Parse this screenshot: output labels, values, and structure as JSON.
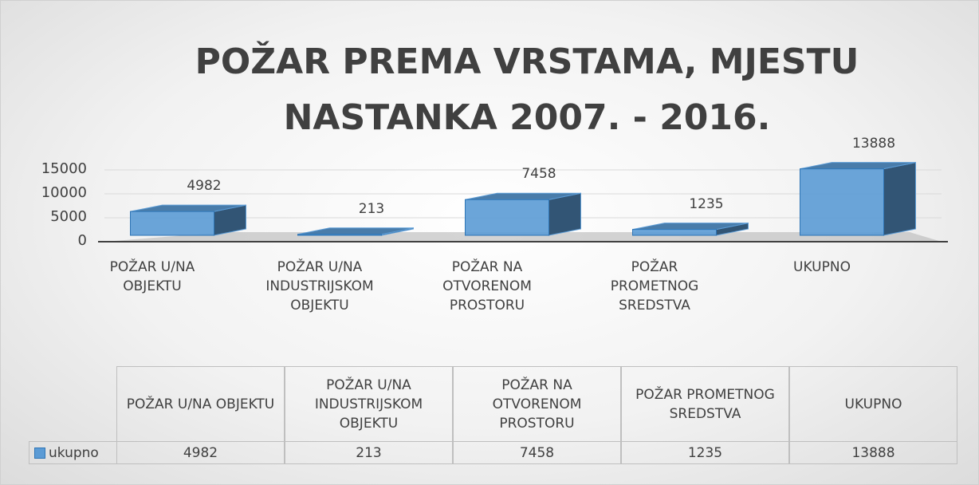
{
  "chart_data": {
    "type": "bar3d",
    "title": "POŽAR PREMA VRSTAMA, MJESTU NASTANKA 2007. - 2016.",
    "categories": [
      "POŽAR U/NA OBJEKTU",
      "POŽAR U/NA INDUSTRIJSKOM OBJEKTU",
      "POŽAR NA OTVORENOM PROSTORU",
      "POŽAR PROMETNOG SREDSTVA",
      "UKUPNO"
    ],
    "series": [
      {
        "name": "ukupno",
        "color": "#5b9bd5",
        "values": [
          4982,
          213,
          7458,
          1235,
          13888
        ]
      }
    ],
    "ylim": [
      0,
      15000
    ],
    "yticks": [
      0,
      5000,
      10000,
      15000
    ],
    "grid": true,
    "data_table": true
  }
}
